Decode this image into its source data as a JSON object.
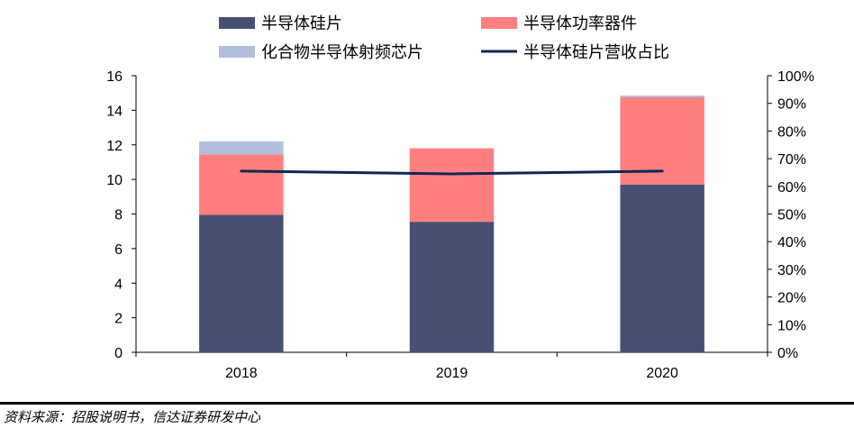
{
  "chart_data": {
    "type": "bar",
    "stacked": true,
    "categories": [
      "2018",
      "2019",
      "2020"
    ],
    "series": [
      {
        "name": "半导体硅片",
        "color": "#475073",
        "values": [
          7.95,
          7.55,
          9.7
        ]
      },
      {
        "name": "半导体功率器件",
        "color": "#FF7F7F",
        "values": [
          3.5,
          4.25,
          5.05
        ]
      },
      {
        "name": "化合物半导体射频芯片",
        "color": "#B3BEDC",
        "values": [
          0.75,
          0.0,
          0.1
        ]
      }
    ],
    "line_series": {
      "name": "半导体硅片营收占比",
      "color": "#0F2752",
      "axis": "right",
      "values": [
        0.655,
        0.645,
        0.655
      ]
    },
    "ylim": [
      0,
      16
    ],
    "yticks": [
      "0",
      "2",
      "4",
      "6",
      "8",
      "10",
      "12",
      "14",
      "16"
    ],
    "y2lim": [
      0,
      1
    ],
    "y2ticks": [
      "0%",
      "10%",
      "20%",
      "30%",
      "40%",
      "50%",
      "60%",
      "70%",
      "80%",
      "90%",
      "100%"
    ],
    "legend_position": "top",
    "grid": false
  },
  "source": "资料来源：招股说明书，信达证券研发中心"
}
